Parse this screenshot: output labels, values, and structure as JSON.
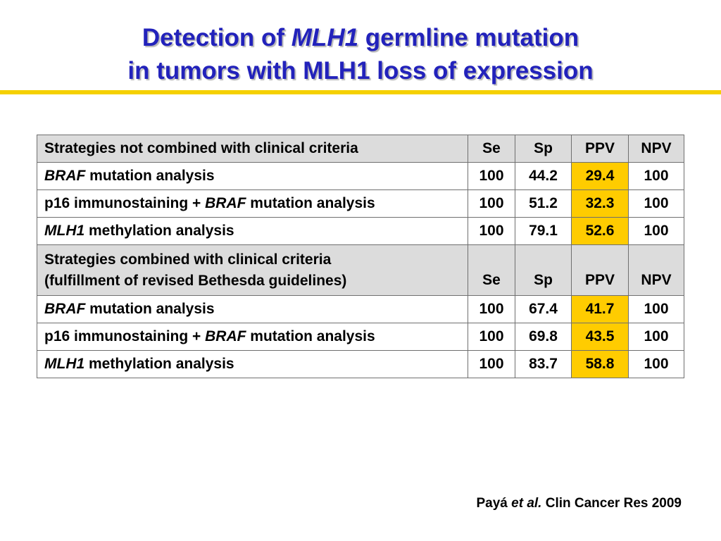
{
  "title": {
    "line1_pre": "Detection of ",
    "line1_italic": "MLH1",
    "line1_post": " germline mutation",
    "line2": "in tumors with MLH1 loss of expression"
  },
  "colors": {
    "title": "#2222bb",
    "rule": "#f5d000",
    "header_bg": "#dcdcdc",
    "ppv_highlight": "#ffcc00"
  },
  "table": {
    "section1": {
      "header": {
        "strategy": "Strategies not combined with clinical criteria",
        "se": "Se",
        "sp": "Sp",
        "ppv": "PPV",
        "npv": "NPV"
      },
      "rows": [
        {
          "italic": "BRAF",
          "text": " mutation analysis",
          "se": "100",
          "sp": "44.2",
          "ppv": "29.4",
          "npv": "100"
        },
        {
          "pre": "p16 immunostaining + ",
          "italic": "BRAF",
          "text": " mutation analysis",
          "se": "100",
          "sp": "51.2",
          "ppv": "32.3",
          "npv": "100"
        },
        {
          "italic": "MLH1",
          "text": " methylation analysis",
          "se": "100",
          "sp": "79.1",
          "ppv": "52.6",
          "npv": "100"
        }
      ]
    },
    "section2": {
      "header": {
        "strategy_line1": "Strategies combined with clinical criteria",
        "strategy_line2": "(fulfillment of revised Bethesda guidelines)",
        "se": "Se",
        "sp": "Sp",
        "ppv": "PPV",
        "npv": "NPV"
      },
      "rows": [
        {
          "italic": "BRAF",
          "text": " mutation analysis",
          "se": "100",
          "sp": "67.4",
          "ppv": "41.7",
          "npv": "100"
        },
        {
          "pre": "p16 immunostaining + ",
          "italic": "BRAF",
          "text": " mutation analysis",
          "se": "100",
          "sp": "69.8",
          "ppv": "43.5",
          "npv": "100"
        },
        {
          "italic": "MLH1",
          "text": " methylation analysis",
          "se": "100",
          "sp": "83.7",
          "ppv": "58.8",
          "npv": "100"
        }
      ]
    }
  },
  "citation": {
    "author": "Payá ",
    "etal": "et al.",
    "rest": " Clin Cancer Res 2009"
  }
}
